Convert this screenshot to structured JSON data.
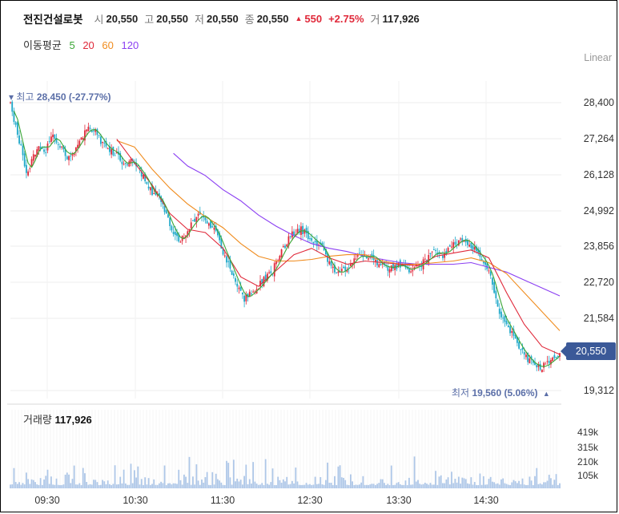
{
  "header": {
    "name": "전진건설로봇",
    "open_label": "시",
    "open": "20,550",
    "high_label": "고",
    "high": "20,550",
    "low_label": "저",
    "low": "20,550",
    "close_label": "종",
    "close": "20,550",
    "change": "550",
    "change_pct": "+2.75%",
    "volume_label": "거",
    "volume": "117,926"
  },
  "ma_legend": {
    "label": "이동평균",
    "items": [
      {
        "period": "5",
        "color": "#3aa635"
      },
      {
        "period": "20",
        "color": "#e0293a"
      },
      {
        "period": "60",
        "color": "#f08c1e"
      },
      {
        "period": "120",
        "color": "#8b3ff2"
      }
    ]
  },
  "scale_mode": "Linear",
  "high_marker": {
    "label": "최고",
    "value": "28,450 (-27.77%)"
  },
  "low_marker": {
    "label": "최저",
    "value": "19,560 (5.06%)"
  },
  "current_price": "20,550",
  "volume_title": {
    "label": "거래량",
    "value": "117,926"
  },
  "colors": {
    "up": "#e0293a",
    "down": "#1ea8c9",
    "volume": "#aec7e8"
  },
  "chart_data": {
    "type": "candlestick",
    "y_ticks": [
      "28,400",
      "27,264",
      "26,128",
      "24,992",
      "23,856",
      "22,720",
      "21,584",
      "19,312"
    ],
    "ylim": [
      19312,
      28400
    ],
    "x_ticks": [
      "09:30",
      "10:30",
      "11:30",
      "12:30",
      "13:30",
      "14:30"
    ],
    "volume_ticks": [
      "419k",
      "315k",
      "210k",
      "105k"
    ],
    "price_path": [
      [
        0,
        28400
      ],
      [
        3,
        27600
      ],
      [
        6,
        27000
      ],
      [
        9,
        26100
      ],
      [
        12,
        26600
      ],
      [
        16,
        27100
      ],
      [
        20,
        26900
      ],
      [
        24,
        27400
      ],
      [
        28,
        27000
      ],
      [
        32,
        26700
      ],
      [
        36,
        26900
      ],
      [
        40,
        27300
      ],
      [
        44,
        27600
      ],
      [
        48,
        27500
      ],
      [
        52,
        27100
      ],
      [
        56,
        26900
      ],
      [
        60,
        26800
      ],
      [
        64,
        26400
      ],
      [
        68,
        26600
      ],
      [
        72,
        26300
      ],
      [
        76,
        26000
      ],
      [
        80,
        25500
      ],
      [
        84,
        25400
      ],
      [
        88,
        24800
      ],
      [
        92,
        24300
      ],
      [
        96,
        24000
      ],
      [
        100,
        24400
      ],
      [
        104,
        24700
      ],
      [
        108,
        24900
      ],
      [
        112,
        24600
      ],
      [
        116,
        24300
      ],
      [
        120,
        23700
      ],
      [
        124,
        23200
      ],
      [
        128,
        22600
      ],
      [
        132,
        22200
      ],
      [
        136,
        22400
      ],
      [
        140,
        22600
      ],
      [
        144,
        22900
      ],
      [
        148,
        23100
      ],
      [
        152,
        23600
      ],
      [
        156,
        24000
      ],
      [
        160,
        24300
      ],
      [
        164,
        24400
      ],
      [
        168,
        24200
      ],
      [
        172,
        24000
      ],
      [
        176,
        23800
      ],
      [
        180,
        23300
      ],
      [
        184,
        23000
      ],
      [
        188,
        23100
      ],
      [
        192,
        23300
      ],
      [
        196,
        23600
      ],
      [
        200,
        23500
      ],
      [
        204,
        23600
      ],
      [
        208,
        23300
      ],
      [
        212,
        23200
      ],
      [
        216,
        23200
      ],
      [
        220,
        23300
      ],
      [
        224,
        23100
      ],
      [
        228,
        23200
      ],
      [
        232,
        23300
      ],
      [
        236,
        23500
      ],
      [
        240,
        23700
      ],
      [
        244,
        23600
      ],
      [
        248,
        23800
      ],
      [
        252,
        24000
      ],
      [
        256,
        24100
      ],
      [
        260,
        23900
      ],
      [
        264,
        23600
      ],
      [
        268,
        23300
      ],
      [
        272,
        22700
      ],
      [
        276,
        21800
      ],
      [
        280,
        21400
      ],
      [
        284,
        21000
      ],
      [
        288,
        20600
      ],
      [
        292,
        20300
      ],
      [
        296,
        20100
      ],
      [
        300,
        20050
      ],
      [
        304,
        20200
      ],
      [
        307,
        20350
      ],
      [
        310,
        20500
      ]
    ],
    "ma20_path": [
      [
        60,
        27250
      ],
      [
        70,
        26500
      ],
      [
        80,
        25800
      ],
      [
        90,
        24900
      ],
      [
        100,
        24400
      ],
      [
        110,
        24300
      ],
      [
        120,
        23800
      ],
      [
        130,
        22900
      ],
      [
        140,
        22600
      ],
      [
        150,
        23100
      ],
      [
        160,
        23600
      ],
      [
        170,
        23800
      ],
      [
        180,
        23500
      ],
      [
        190,
        23300
      ],
      [
        200,
        23400
      ],
      [
        210,
        23350
      ],
      [
        220,
        23300
      ],
      [
        230,
        23250
      ],
      [
        240,
        23550
      ],
      [
        250,
        23650
      ],
      [
        260,
        23750
      ],
      [
        270,
        23500
      ],
      [
        280,
        22400
      ],
      [
        290,
        21400
      ],
      [
        300,
        20700
      ],
      [
        310,
        20450
      ]
    ],
    "ma60_path": [
      [
        60,
        27200
      ],
      [
        70,
        27000
      ],
      [
        80,
        26300
      ],
      [
        90,
        25700
      ],
      [
        100,
        25200
      ],
      [
        110,
        24800
      ],
      [
        120,
        24450
      ],
      [
        130,
        23950
      ],
      [
        140,
        23550
      ],
      [
        150,
        23400
      ],
      [
        160,
        23400
      ],
      [
        170,
        23450
      ],
      [
        180,
        23550
      ],
      [
        190,
        23600
      ],
      [
        200,
        23600
      ],
      [
        210,
        23400
      ],
      [
        220,
        23300
      ],
      [
        230,
        23300
      ],
      [
        240,
        23350
      ],
      [
        250,
        23400
      ],
      [
        260,
        23500
      ],
      [
        270,
        23350
      ],
      [
        280,
        23000
      ],
      [
        290,
        22400
      ],
      [
        300,
        21800
      ],
      [
        310,
        21200
      ]
    ],
    "ma120_path": [
      [
        92,
        26800
      ],
      [
        100,
        26400
      ],
      [
        110,
        26100
      ],
      [
        120,
        25650
      ],
      [
        130,
        25300
      ],
      [
        140,
        24850
      ],
      [
        150,
        24500
      ],
      [
        160,
        24200
      ],
      [
        170,
        23950
      ],
      [
        180,
        23800
      ],
      [
        190,
        23700
      ],
      [
        200,
        23550
      ],
      [
        210,
        23450
      ],
      [
        220,
        23350
      ],
      [
        230,
        23300
      ],
      [
        240,
        23300
      ],
      [
        250,
        23300
      ],
      [
        260,
        23350
      ],
      [
        270,
        23200
      ],
      [
        280,
        23050
      ],
      [
        290,
        22800
      ],
      [
        300,
        22550
      ],
      [
        310,
        22300
      ]
    ]
  }
}
